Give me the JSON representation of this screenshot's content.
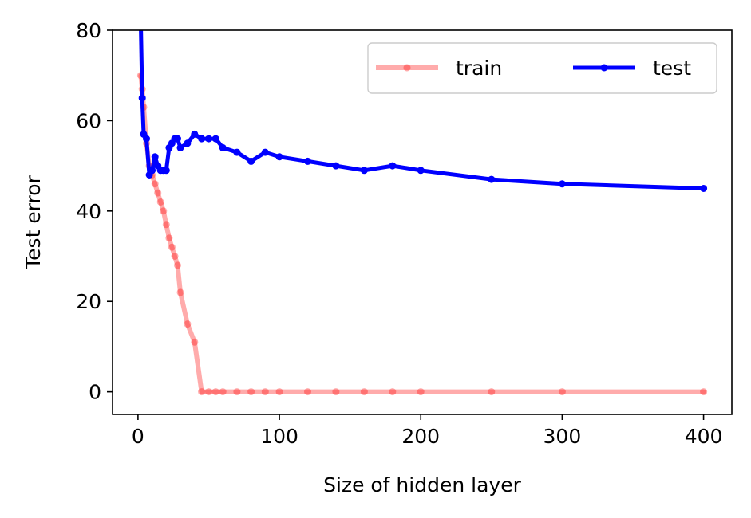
{
  "chart_data": {
    "type": "line",
    "title": "",
    "xlabel": "Size of hidden layer",
    "ylabel": "Test error",
    "xlim": [
      -18,
      420
    ],
    "ylim": [
      -5,
      80
    ],
    "xticks": [
      0,
      100,
      200,
      300,
      400
    ],
    "yticks": [
      0,
      20,
      40,
      60,
      80
    ],
    "xtick_labels": [
      "0",
      "100",
      "200",
      "300",
      "400"
    ],
    "ytick_labels": [
      "0",
      "20",
      "40",
      "60",
      "80"
    ],
    "grid": false,
    "legend": {
      "position": "top-right",
      "columns": 2
    },
    "series": [
      {
        "name": "train",
        "color": "#ff0000",
        "alpha": 0.33,
        "x": [
          2,
          3,
          4,
          6,
          8,
          10,
          12,
          14,
          16,
          18,
          20,
          22,
          24,
          26,
          28,
          30,
          35,
          40,
          45,
          50,
          55,
          60,
          70,
          80,
          90,
          100,
          120,
          140,
          160,
          180,
          200,
          250,
          300,
          400
        ],
        "y": [
          70,
          67,
          63,
          55,
          50,
          48,
          46,
          44,
          42,
          40,
          37,
          34,
          32,
          30,
          28,
          22,
          15,
          11,
          0,
          0,
          0,
          0,
          0,
          0,
          0,
          0,
          0,
          0,
          0,
          0,
          0,
          0,
          0,
          0
        ]
      },
      {
        "name": "test",
        "color": "#0000ff",
        "alpha": 1,
        "x": [
          2,
          3,
          4,
          6,
          8,
          10,
          12,
          14,
          16,
          18,
          20,
          22,
          24,
          26,
          28,
          30,
          35,
          40,
          45,
          50,
          55,
          60,
          70,
          80,
          90,
          100,
          120,
          140,
          160,
          180,
          200,
          250,
          300,
          400
        ],
        "y": [
          82,
          65,
          57,
          56,
          48,
          49,
          52,
          50,
          49,
          49,
          49,
          54,
          55,
          56,
          56,
          54,
          55,
          57,
          56,
          56,
          56,
          54,
          53,
          51,
          53,
          52,
          51,
          50,
          49,
          50,
          49,
          47,
          46,
          45
        ]
      }
    ]
  }
}
